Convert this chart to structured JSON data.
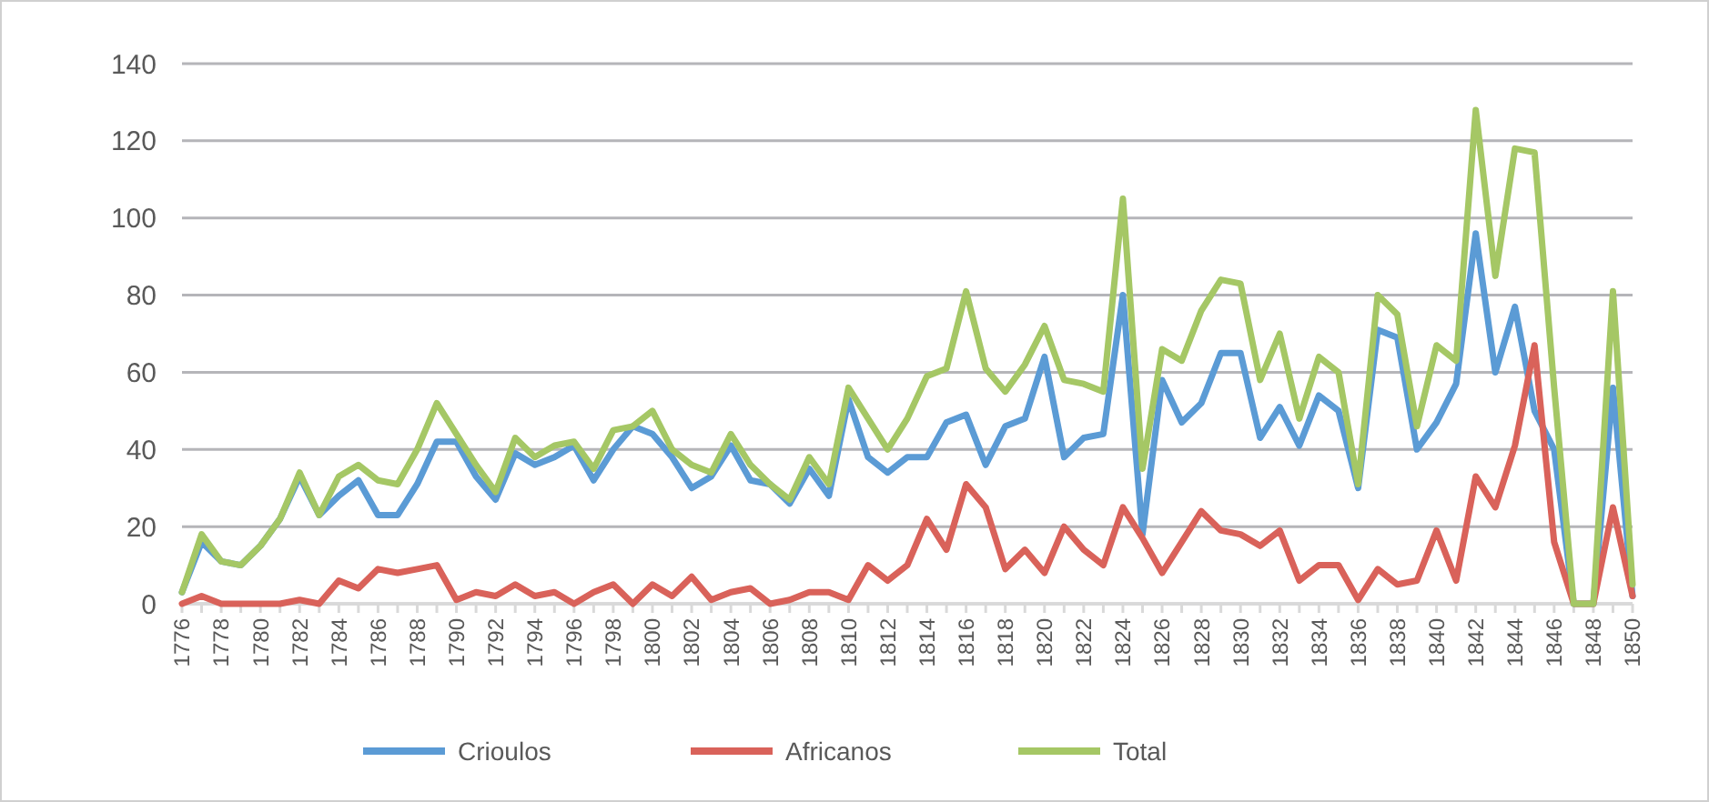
{
  "chart_data": {
    "type": "line",
    "x": [
      1776,
      1777,
      1778,
      1779,
      1780,
      1781,
      1782,
      1783,
      1784,
      1785,
      1786,
      1787,
      1788,
      1789,
      1790,
      1791,
      1792,
      1793,
      1794,
      1795,
      1796,
      1797,
      1798,
      1799,
      1800,
      1801,
      1802,
      1803,
      1804,
      1805,
      1806,
      1807,
      1808,
      1809,
      1810,
      1811,
      1812,
      1813,
      1814,
      1815,
      1816,
      1817,
      1818,
      1819,
      1820,
      1821,
      1822,
      1823,
      1824,
      1825,
      1826,
      1827,
      1828,
      1829,
      1830,
      1831,
      1832,
      1833,
      1834,
      1835,
      1836,
      1837,
      1838,
      1839,
      1840,
      1841,
      1842,
      1843,
      1844,
      1845,
      1846,
      1847,
      1848,
      1849,
      1850
    ],
    "xlim": [
      1776,
      1850
    ],
    "xticks": [
      1776,
      1778,
      1780,
      1782,
      1784,
      1786,
      1788,
      1790,
      1792,
      1794,
      1796,
      1798,
      1800,
      1802,
      1804,
      1806,
      1808,
      1810,
      1812,
      1814,
      1816,
      1818,
      1820,
      1822,
      1824,
      1826,
      1828,
      1830,
      1832,
      1834,
      1836,
      1838,
      1840,
      1842,
      1844,
      1846,
      1848,
      1850
    ],
    "ylim": [
      0,
      140
    ],
    "yticks": [
      0,
      20,
      40,
      60,
      80,
      100,
      120,
      140
    ],
    "grid": "y",
    "legend": "bottom",
    "marker": "none",
    "line_style": "solid",
    "series": [
      {
        "name": "Crioulos",
        "color": "#5b9bd5",
        "values": [
          3,
          16,
          11,
          10,
          15,
          22,
          33,
          23,
          28,
          32,
          23,
          23,
          31,
          42,
          42,
          33,
          27,
          39,
          36,
          38,
          41,
          32,
          40,
          46,
          44,
          38,
          30,
          33,
          41,
          32,
          31,
          26,
          35,
          28,
          53,
          38,
          34,
          38,
          38,
          47,
          49,
          36,
          46,
          48,
          64,
          38,
          43,
          44,
          80,
          18,
          58,
          47,
          52,
          65,
          65,
          43,
          51,
          41,
          54,
          50,
          30,
          71,
          69,
          40,
          47,
          57,
          96,
          60,
          77,
          50,
          40,
          0,
          0,
          56,
          2
        ]
      },
      {
        "name": "Africanos",
        "color": "#d9625a",
        "values": [
          0,
          2,
          0,
          0,
          0,
          0,
          1,
          0,
          6,
          4,
          9,
          8,
          9,
          10,
          1,
          3,
          2,
          5,
          2,
          3,
          0,
          3,
          5,
          0,
          5,
          2,
          7,
          1,
          3,
          4,
          0,
          1,
          3,
          3,
          1,
          10,
          6,
          10,
          22,
          14,
          31,
          25,
          9,
          14,
          8,
          20,
          14,
          10,
          25,
          17,
          8,
          16,
          24,
          19,
          18,
          15,
          19,
          6,
          10,
          10,
          1,
          9,
          5,
          6,
          19,
          6,
          33,
          25,
          41,
          67,
          16,
          0,
          0,
          25,
          2
        ]
      },
      {
        "name": "Total",
        "color": "#a5c765",
        "values": [
          3,
          18,
          11,
          10,
          15,
          22,
          34,
          23,
          33,
          36,
          32,
          31,
          40,
          52,
          44,
          36,
          29,
          43,
          38,
          41,
          42,
          35,
          45,
          46,
          50,
          40,
          36,
          34,
          44,
          36,
          31,
          27,
          38,
          31,
          56,
          48,
          40,
          48,
          59,
          61,
          81,
          61,
          55,
          62,
          72,
          58,
          57,
          55,
          105,
          35,
          66,
          63,
          76,
          84,
          83,
          58,
          70,
          48,
          64,
          60,
          31,
          80,
          75,
          46,
          67,
          63,
          128,
          85,
          118,
          117,
          56,
          0,
          0,
          81,
          5
        ]
      }
    ]
  }
}
